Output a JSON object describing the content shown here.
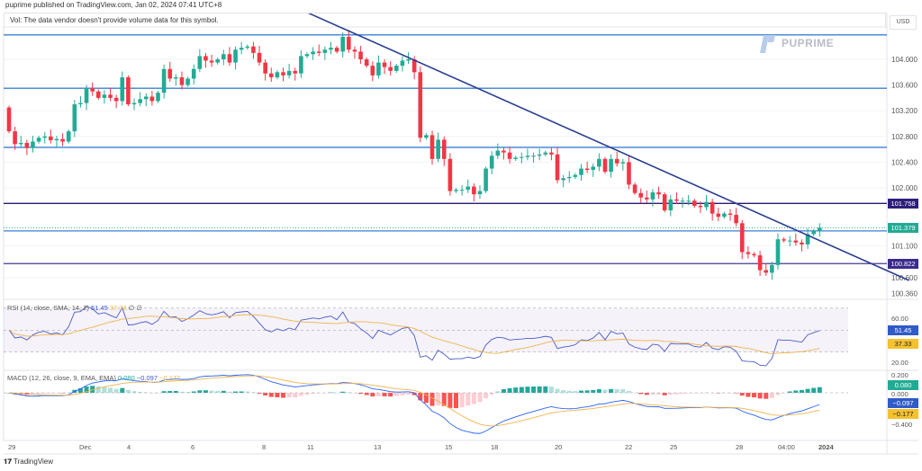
{
  "header": {
    "published": "puprime published on TradingView.com, Jan 02, 2024 07:41 UTC+8",
    "vol_notice": "Vol: The data vendor doesn't provide volume data for this symbol."
  },
  "brand": {
    "name": "PUPRIME",
    "footer": "TradingView"
  },
  "colors": {
    "up": "#22ab94",
    "down": "#f23645",
    "level": "#3d7fd1",
    "trend": "#2a3f8f",
    "dark_level": "#2e1a6e"
  },
  "price_axis": {
    "currency": "USD",
    "ticks": [
      "104.000",
      "103.600",
      "103.200",
      "102.800",
      "102.400",
      "102.000",
      "101.100",
      "100.600",
      "100.360"
    ],
    "tags": [
      {
        "label": "101.758",
        "color": "#2e1f7a"
      },
      {
        "label": "101.379",
        "color": "#22ab94"
      },
      {
        "label": "100.822",
        "color": "#3c2a8c"
      }
    ]
  },
  "rsi": {
    "legend": "RSI (14, close, SMA, 14, 2)",
    "value": "51.45",
    "sma": "37.33",
    "ticks": [
      "60.00",
      "20.00"
    ],
    "tag_value": "51.45",
    "tag_sma": "37.33"
  },
  "macd": {
    "legend": "MACD (12, 26, close, 9, EMA, EMA)",
    "hist": "0.080",
    "macd": "−0.097",
    "signal": "−0.177",
    "ticks": [
      "0.200",
      "0.000",
      "−0.400"
    ]
  },
  "time_axis": [
    "29",
    "Dec",
    "4",
    "6",
    "8",
    "11",
    "13",
    "15",
    "18",
    "20",
    "22",
    "25",
    "28",
    "04:00",
    "2024"
  ],
  "chart_data": {
    "type": "candlestick",
    "first_open": 103.25,
    "closes": [
      102.88,
      102.68,
      102.7,
      102.62,
      102.72,
      102.78,
      102.8,
      102.74,
      102.76,
      102.72,
      102.88,
      103.3,
      103.32,
      103.55,
      103.5,
      103.4,
      103.45,
      103.4,
      103.35,
      103.72,
      103.3,
      103.32,
      103.38,
      103.42,
      103.35,
      103.48,
      103.85,
      103.7,
      103.72,
      103.6,
      103.7,
      103.85,
      104.05,
      103.98,
      103.95,
      104.0,
      104.08,
      103.95,
      104.15,
      104.18,
      104.2,
      104.1,
      103.95,
      103.78,
      103.72,
      103.8,
      103.75,
      103.82,
      103.78,
      104.05,
      104.08,
      104.12,
      104.1,
      104.15,
      104.18,
      104.12,
      104.35,
      104.15,
      104.12,
      104.0,
      103.9,
      103.75,
      103.95,
      103.88,
      103.82,
      103.9,
      103.98,
      104.0,
      103.8,
      102.78,
      102.82,
      102.45,
      102.75,
      102.45,
      101.95,
      101.97,
      101.97,
      102.02,
      101.9,
      101.95,
      102.3,
      102.5,
      102.58,
      102.55,
      102.45,
      102.47,
      102.48,
      102.5,
      102.5,
      102.52,
      102.55,
      102.52,
      102.12,
      102.15,
      102.17,
      102.2,
      102.3,
      102.28,
      102.33,
      102.45,
      102.25,
      102.45,
      102.38,
      102.4,
      102.05,
      101.92,
      101.85,
      101.82,
      101.93,
      101.9,
      101.65,
      101.82,
      101.8,
      101.8,
      101.8,
      101.72,
      101.7,
      101.78,
      101.6,
      101.55,
      101.6,
      101.58,
      101.45,
      101.0,
      100.97,
      100.95,
      100.72,
      100.68,
      100.8,
      101.2,
      101.18,
      101.18,
      101.15,
      101.12,
      101.28,
      101.33,
      101.38
    ],
    "horizontal_levels": [
      104.38,
      103.55,
      102.63,
      101.758,
      101.33,
      100.822
    ],
    "last_price": 101.379,
    "trendline": {
      "from": [
        50,
        104.73
      ],
      "to": [
        151,
        100.56
      ]
    },
    "ylim": [
      100.25,
      104.75
    ]
  }
}
